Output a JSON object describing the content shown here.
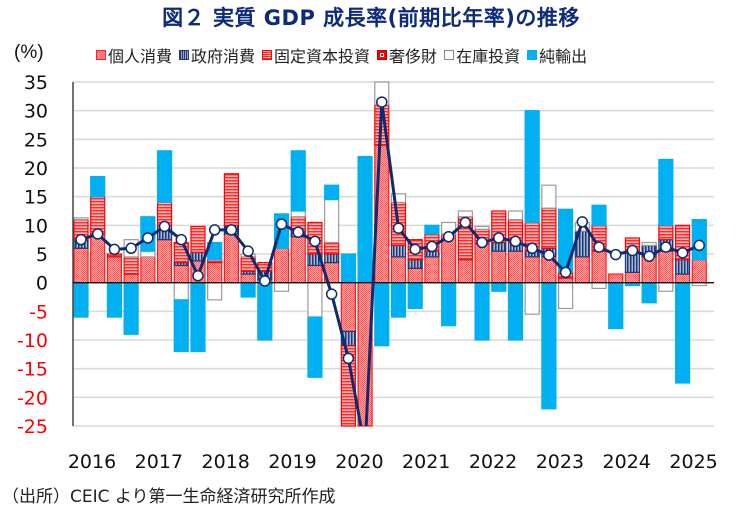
{
  "header": {
    "title": "図２ 実質 GDP 成長率(前期比年率)の推移",
    "unit_label": "(%)"
  },
  "legend": [
    {
      "key": "consumption",
      "label": "個人消費"
    },
    {
      "key": "government",
      "label": "政府消費"
    },
    {
      "key": "investment",
      "label": "固定資本投資"
    },
    {
      "key": "luxury",
      "label": "奢侈財"
    },
    {
      "key": "inventory",
      "label": "在庫投資"
    },
    {
      "key": "net_exports",
      "label": "純輸出"
    }
  ],
  "footer": {
    "source": "（出所）CEIC より第一生命経済研究所作成"
  },
  "chart_data": {
    "type": "bar",
    "stacked": true,
    "title": "図２ 実質 GDP 成長率(前期比年率)の推移",
    "xlabel": "",
    "ylabel": "(%)",
    "ylim": [
      -25,
      35
    ],
    "yticks": [
      35,
      30,
      25,
      20,
      15,
      10,
      5,
      0,
      -5,
      -10,
      -15,
      -20,
      -25
    ],
    "negative_tick_color": "#ff0000",
    "positive_tick_color": "#111111",
    "grid": true,
    "legend_position": "top",
    "x_tick_labels": [
      "2016",
      "2017",
      "2018",
      "2019",
      "2020",
      "2021",
      "2022",
      "2023",
      "2024",
      "2025"
    ],
    "categories": [
      "2016Q1",
      "2016Q2",
      "2016Q3",
      "2016Q4",
      "2017Q1",
      "2017Q2",
      "2017Q3",
      "2017Q4",
      "2018Q1",
      "2018Q2",
      "2018Q3",
      "2018Q4",
      "2019Q1",
      "2019Q2",
      "2019Q3",
      "2019Q4",
      "2020Q1",
      "2020Q2",
      "2020Q3",
      "2020Q4",
      "2021Q1",
      "2021Q2",
      "2021Q3",
      "2021Q4",
      "2022Q1",
      "2022Q2",
      "2022Q3",
      "2022Q4",
      "2023Q1",
      "2023Q2",
      "2023Q3",
      "2023Q4",
      "2024Q1",
      "2024Q2",
      "2024Q3",
      "2024Q4",
      "2025Q1",
      "2025Q2"
    ],
    "series": [
      {
        "name": "個人消費",
        "key": "consumption",
        "color": "#ff7f7f",
        "values": [
          6.0,
          8.5,
          4.5,
          1.5,
          4.5,
          7.5,
          3.0,
          3.8,
          3.5,
          8.5,
          1.5,
          0.5,
          6.0,
          8.0,
          3.0,
          3.5,
          -8.5,
          -27.0,
          24.0,
          4.5,
          2.5,
          4.5,
          8.5,
          4.0,
          6.8,
          5.5,
          5.5,
          4.5,
          4.5,
          0.8,
          4.5,
          5.5,
          1.5,
          1.8,
          4.5,
          5.5,
          1.5,
          4.0
        ]
      },
      {
        "name": "政府消費",
        "key": "government",
        "color": "#2b4a8a",
        "values": [
          1.5,
          0,
          0,
          0,
          0,
          2.5,
          0.5,
          1.5,
          0,
          1.5,
          0.5,
          1.5,
          0,
          1.0,
          2.0,
          1.5,
          -2.5,
          0,
          0,
          2.0,
          1.5,
          1.0,
          0,
          0,
          0,
          1.5,
          1.5,
          1.0,
          1.5,
          0,
          4.5,
          0,
          0,
          3.5,
          2.0,
          2.0,
          2.5,
          0
        ]
      },
      {
        "name": "固定資本投資",
        "key": "investment",
        "color": "#ff4d4d",
        "values": [
          3.5,
          6.5,
          0.5,
          3.0,
          0,
          4.0,
          3.5,
          4.5,
          0.5,
          9.0,
          2.5,
          1.5,
          0,
          2.5,
          5.5,
          2.0,
          -14.0,
          -6.0,
          7.0,
          7.5,
          3.5,
          3.0,
          0,
          7.5,
          2.5,
          5.5,
          4.0,
          5.0,
          7.0,
          1.0,
          0,
          4.5,
          0,
          2.5,
          0,
          2.5,
          6.0,
          0
        ]
      },
      {
        "name": "奢侈財",
        "key": "luxury",
        "color": "#ff0000",
        "values": [
          0,
          0,
          0,
          0,
          0,
          0,
          0,
          0,
          0,
          0,
          0,
          0,
          0,
          0,
          0,
          0,
          0,
          0,
          0,
          0,
          0,
          0,
          0,
          0,
          0,
          0,
          0,
          0,
          0,
          0,
          0,
          0,
          0,
          0,
          0,
          0,
          0,
          0
        ]
      },
      {
        "name": "在庫投資",
        "key": "inventory",
        "color": "#ffffff",
        "values": [
          0.3,
          0,
          0,
          3.0,
          1.0,
          0,
          -3.0,
          0,
          -3.0,
          0,
          0.5,
          0,
          -1.5,
          1.0,
          -6.0,
          7.5,
          0,
          0,
          4.0,
          1.5,
          0,
          0,
          2.0,
          1.0,
          0.5,
          0,
          1.5,
          -5.5,
          4.0,
          -4.5,
          1.5,
          -1.0,
          0,
          0,
          0.5,
          -1.5,
          0,
          -0.5
        ]
      },
      {
        "name": "純輸出",
        "key": "net_exports",
        "color": "#00b0f0",
        "values": [
          -6.0,
          3.5,
          -6.0,
          -9.0,
          6.0,
          9.0,
          -9.0,
          -12.0,
          3.0,
          0,
          -2.5,
          -10.0,
          6.0,
          10.5,
          -10.5,
          2.5,
          5.0,
          22.0,
          -11.0,
          -6.0,
          -4.5,
          1.5,
          -7.5,
          0,
          -10.0,
          -1.5,
          -10.0,
          19.5,
          -22.0,
          11.0,
          0,
          3.5,
          -8.0,
          -0.5,
          -3.5,
          11.5,
          -17.5,
          7.0
        ]
      }
    ],
    "line": {
      "name": "実質GDP成長率",
      "color": "#0d2b6e",
      "values": [
        7.5,
        8.5,
        5.8,
        6.0,
        7.8,
        9.8,
        7.5,
        1.2,
        9.2,
        9.2,
        5.5,
        0.3,
        10.2,
        8.8,
        7.2,
        -2.0,
        -13.2,
        -29.0,
        31.5,
        9.5,
        5.8,
        6.3,
        8.0,
        10.5,
        7.0,
        7.8,
        7.2,
        6.0,
        4.8,
        1.8,
        10.6,
        6.2,
        4.9,
        5.6,
        4.6,
        6.2,
        5.2,
        6.5
      ]
    }
  }
}
